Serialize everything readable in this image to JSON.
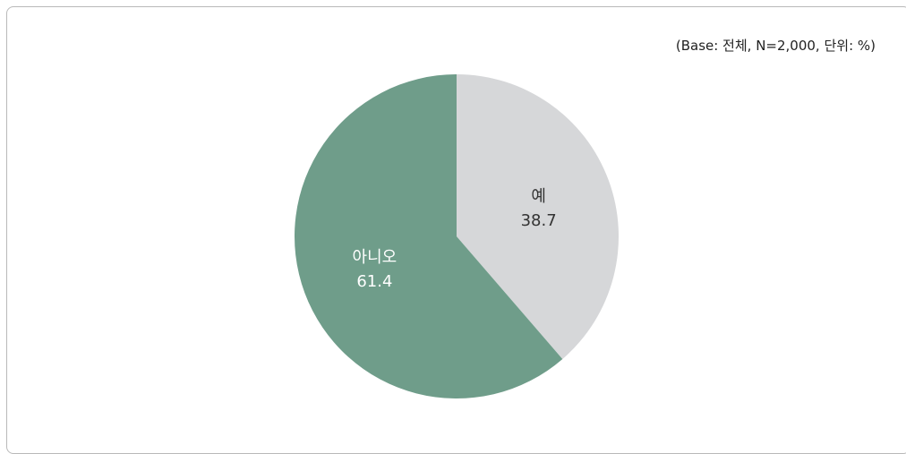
{
  "note": "(Base: 전체, N=2,000, 단위: %)",
  "chart_data": {
    "type": "pie",
    "title": "",
    "start_angle_deg": 0,
    "direction": "clockwise",
    "slices": [
      {
        "label": "예",
        "value": 38.7,
        "value_text": "38.7",
        "color": "#d6d7d9",
        "text_color": "#333333"
      },
      {
        "label": "아니오",
        "value": 61.4,
        "value_text": "61.4",
        "color": "#6f9d8a",
        "text_color": "#ffffff"
      }
    ]
  }
}
